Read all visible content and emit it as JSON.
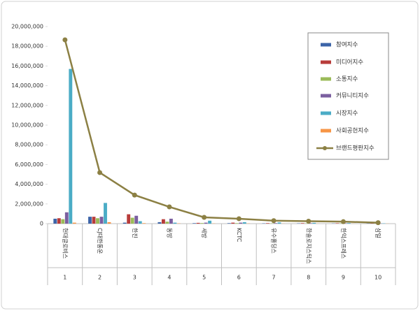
{
  "chart_data": {
    "type": "bar",
    "categories": [
      "현대글로비스",
      "CJ대한통운",
      "한진",
      "동방",
      "세방",
      "KCTC",
      "유수홀딩스",
      "한솔로지스틱스",
      "한익스프레스",
      "삼일"
    ],
    "ranks": [
      1,
      2,
      3,
      4,
      5,
      6,
      7,
      8,
      9,
      10
    ],
    "series": [
      {
        "name": "참여지수",
        "color": "#3c64a8",
        "values": [
          500000,
          700000,
          100000,
          150000,
          50000,
          50000,
          30000,
          30000,
          20000,
          20000
        ]
      },
      {
        "name": "미디어지수",
        "color": "#b83c3a",
        "values": [
          550000,
          700000,
          950000,
          450000,
          80000,
          100000,
          50000,
          50000,
          40000,
          30000
        ]
      },
      {
        "name": "소통지수",
        "color": "#9bbb59",
        "values": [
          450000,
          550000,
          600000,
          200000,
          60000,
          50000,
          30000,
          30000,
          30000,
          20000
        ]
      },
      {
        "name": "커뮤니티지수",
        "color": "#7b5fa0",
        "values": [
          1150000,
          700000,
          800000,
          500000,
          100000,
          100000,
          50000,
          50000,
          40000,
          30000
        ]
      },
      {
        "name": "시장지수",
        "color": "#4bacc6",
        "values": [
          15700000,
          2100000,
          250000,
          100000,
          300000,
          150000,
          120000,
          80000,
          60000,
          30000
        ]
      },
      {
        "name": "사회공헌지수",
        "color": "#f79646",
        "values": [
          100000,
          150000,
          50000,
          30000,
          20000,
          20000,
          10000,
          10000,
          10000,
          10000
        ]
      },
      {
        "name": "브랜드평판지수",
        "color": "#8c8044",
        "type": "line",
        "values": [
          18650000,
          5180000,
          2900000,
          1700000,
          640000,
          500000,
          300000,
          250000,
          200000,
          100000
        ]
      }
    ],
    "ylim": [
      0,
      20000000
    ],
    "yticks": [
      0,
      {
        "value": 2000000,
        "label": "2,000,000"
      },
      {
        "value": 4000000,
        "label": "4,000,000"
      },
      {
        "value": 6000000,
        "label": "6,000,000"
      },
      {
        "value": 8000000,
        "label": "8,000,000"
      },
      {
        "value": 10000000,
        "label": "10,000,000"
      },
      {
        "value": 12000000,
        "label": "12,000,000"
      },
      {
        "value": 14000000,
        "label": "14,000,000"
      },
      {
        "value": 16000000,
        "label": "16,000,000"
      },
      {
        "value": 18000000,
        "label": "18,000,000"
      },
      {
        "value": 20000000,
        "label": "20,000,000"
      }
    ],
    "grid": false,
    "legend": "top-right"
  }
}
